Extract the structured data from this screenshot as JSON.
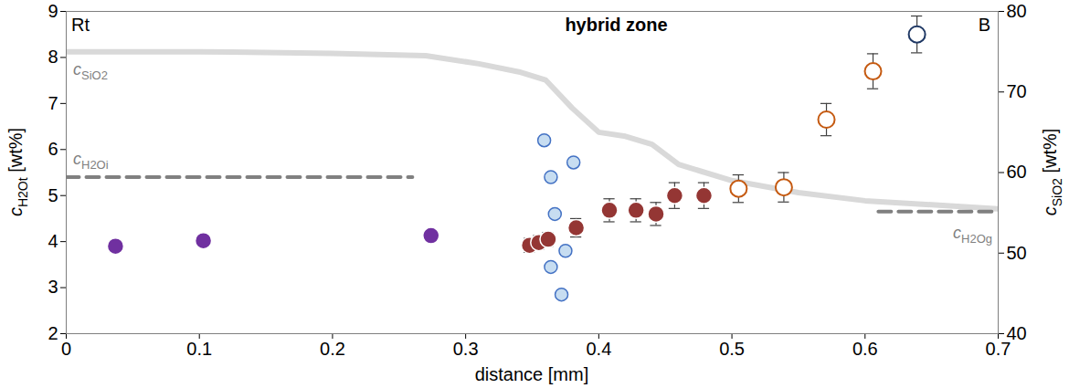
{
  "chart_data": {
    "type": "scatter",
    "x_label": "distance [mm]",
    "y_label": "cH2Ot [wt%]",
    "y2_label": "cSiO2 [wt%]",
    "xlim": [
      0,
      0.7
    ],
    "xticks": [
      0,
      0.1,
      0.2,
      0.3,
      0.4,
      0.5,
      0.6,
      0.7
    ],
    "ylim": [
      2,
      9
    ],
    "yticks": [
      2,
      3,
      4,
      5,
      6,
      7,
      8,
      9
    ],
    "y2lim": [
      40,
      80
    ],
    "y2ticks": [
      40,
      50,
      60,
      70,
      80
    ],
    "annotations": [
      "Rt",
      "hybrid zone",
      "B"
    ],
    "series": [
      {
        "name": "cSiO2",
        "type": "line",
        "axis": "y2",
        "color": "#d9d9d9",
        "line_style": "solid",
        "x": [
          0,
          0.1,
          0.2,
          0.27,
          0.31,
          0.34,
          0.36,
          0.38,
          0.4,
          0.42,
          0.44,
          0.46,
          0.5,
          0.55,
          0.6,
          0.65,
          0.7
        ],
        "values": [
          75,
          75,
          74.8,
          74.5,
          73.5,
          72.5,
          71.5,
          68,
          65,
          64.5,
          63.5,
          61,
          59,
          57.5,
          56.5,
          56,
          55.5
        ]
      },
      {
        "name": "cH2Oi",
        "type": "line",
        "color": "#808080",
        "line_style": "dashed",
        "x": [
          0,
          0.26
        ],
        "values": [
          5.4,
          5.4
        ]
      },
      {
        "name": "cH2Og",
        "type": "line",
        "color": "#808080",
        "line_style": "dashed",
        "x": [
          0.61,
          0.7
        ],
        "values": [
          4.65,
          4.65
        ]
      },
      {
        "type": "scatter",
        "color": "#bdd7ee",
        "marker": "circle",
        "x": [
          0.359,
          0.364,
          0.381,
          0.367,
          0.375,
          0.364,
          0.372
        ],
        "values": [
          6.2,
          5.4,
          5.72,
          4.6,
          3.8,
          3.45,
          2.85
        ]
      },
      {
        "type": "scatter",
        "color": "#7030a0",
        "marker": "circle",
        "x": [
          0.037,
          0.103,
          0.274
        ],
        "values": [
          3.9,
          4.02,
          4.13
        ],
        "error": [
          0.12,
          0.12,
          0.12
        ]
      },
      {
        "type": "scatter",
        "color": "#943634",
        "marker": "circle",
        "x": [
          0.348,
          0.355,
          0.362,
          0.383,
          0.408,
          0.428,
          0.443,
          0.457,
          0.479
        ],
        "values": [
          3.92,
          3.98,
          4.05,
          4.3,
          4.68,
          4.68,
          4.6,
          5.0,
          5.0
        ],
        "error": [
          0.15,
          0.15,
          0.15,
          0.2,
          0.25,
          0.25,
          0.25,
          0.28,
          0.28
        ]
      },
      {
        "type": "scatter",
        "color": "#c55a11",
        "marker": "open circle",
        "x": [
          0.505,
          0.539,
          0.571,
          0.606
        ],
        "values": [
          5.15,
          5.18,
          6.65,
          7.7
        ],
        "error": [
          0.3,
          0.32,
          0.35,
          0.38
        ]
      },
      {
        "type": "scatter",
        "color": "#1f3864",
        "marker": "open circle",
        "x": [
          0.639
        ],
        "values": [
          8.5
        ],
        "error": [
          0.4
        ]
      }
    ]
  }
}
